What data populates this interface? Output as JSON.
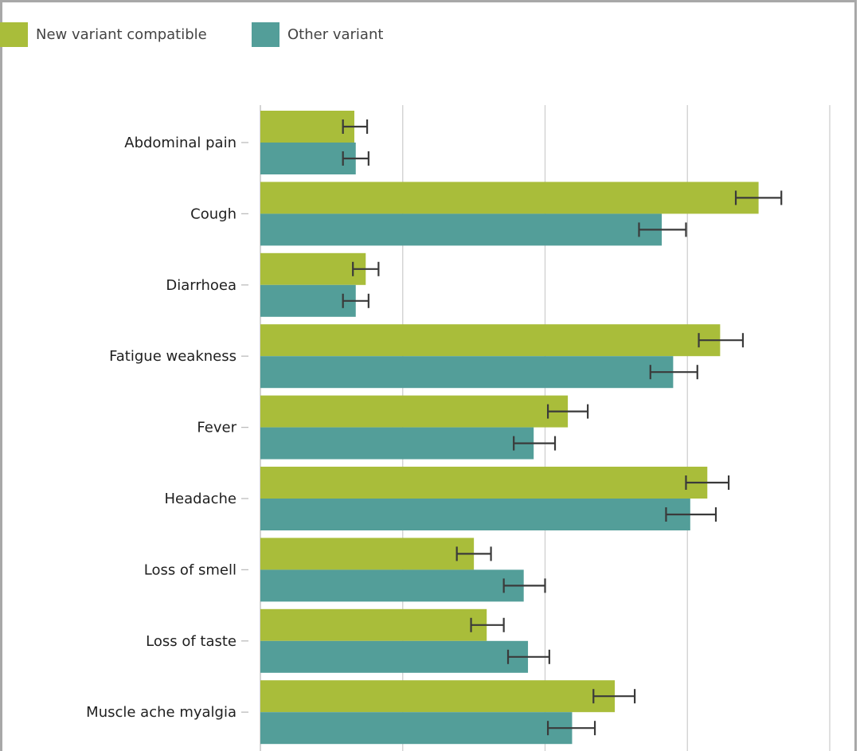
{
  "chart_data": {
    "type": "bar",
    "orientation": "horizontal",
    "categories": [
      "Abdominal pain",
      "Cough",
      "Diarrhoea",
      "Fatigue weakness",
      "Fever",
      "Headache",
      "Loss of smell",
      "Loss of taste",
      "Muscle ache myalgia"
    ],
    "series": [
      {
        "name": "New variant compatible",
        "color": "#a9bd3a",
        "values": [
          6.6,
          35.0,
          7.4,
          32.3,
          21.6,
          31.4,
          15.0,
          15.9,
          24.9
        ],
        "ci_low": [
          5.8,
          33.4,
          6.5,
          30.8,
          20.2,
          29.9,
          13.8,
          14.8,
          23.4
        ],
        "ci_high": [
          7.5,
          36.6,
          8.3,
          33.9,
          23.0,
          32.9,
          16.2,
          17.1,
          26.3
        ]
      },
      {
        "name": "Other variant",
        "color": "#539e99",
        "values": [
          6.7,
          28.2,
          6.7,
          29.0,
          19.2,
          30.2,
          18.5,
          18.8,
          21.9
        ],
        "ci_low": [
          5.8,
          26.6,
          5.8,
          27.4,
          17.8,
          28.5,
          17.1,
          17.4,
          20.2
        ],
        "ci_high": [
          7.6,
          29.9,
          7.6,
          30.7,
          20.7,
          32.0,
          20.0,
          20.3,
          23.5
        ]
      }
    ],
    "xlim": [
      0,
      40
    ],
    "x_gridlines": [
      0,
      10,
      20,
      30,
      40
    ],
    "grid": true,
    "legend_position": "top-left",
    "title": "",
    "xlabel": "",
    "ylabel": ""
  }
}
